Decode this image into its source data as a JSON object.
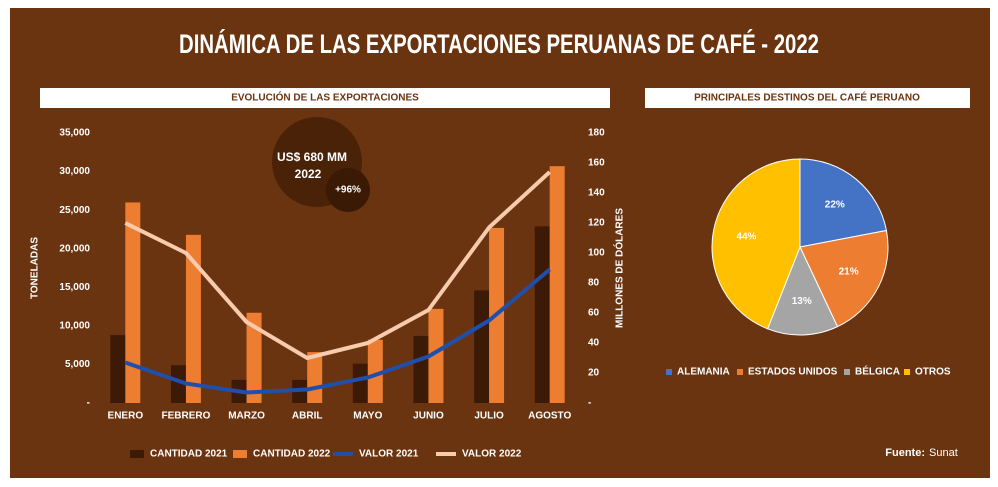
{
  "title": "DINÁMICA DE LAS EXPORTACIONES PERUANAS DE CAFÉ - 2022",
  "chart_data": [
    {
      "type": "combo",
      "title": "EVOLUCIÓN DE LAS EXPORTACIONES",
      "categories": [
        "ENERO",
        "FEBRERO",
        "MARZO",
        "ABRIL",
        "MAYO",
        "JUNIO",
        "JULIO",
        "AGOSTO"
      ],
      "ylabel": "TONELADAS",
      "y2label": "MILLONES DE DÓLARES",
      "ylim": [
        0,
        35000
      ],
      "yticks": [
        {
          "value": 0,
          "label": "-"
        },
        {
          "value": 5000,
          "label": "5,000"
        },
        {
          "value": 10000,
          "label": "10,000"
        },
        {
          "value": 15000,
          "label": "15,000"
        },
        {
          "value": 20000,
          "label": "20,000"
        },
        {
          "value": 25000,
          "label": "25,000"
        },
        {
          "value": 30000,
          "label": "30,000"
        },
        {
          "value": 35000,
          "label": "35,000"
        }
      ],
      "y2lim": [
        0,
        180
      ],
      "y2ticks": [
        {
          "value": 0,
          "label": "-"
        },
        20,
        40,
        60,
        80,
        100,
        120,
        140,
        160,
        180
      ],
      "series": [
        {
          "name": "CANTIDAD 2021",
          "type": "bar",
          "color": "#3d1a05",
          "values": [
            8800,
            4900,
            3000,
            3000,
            5100,
            8700,
            14600,
            22900
          ]
        },
        {
          "name": "CANTIDAD 2022",
          "type": "bar",
          "color": "#ed7d31",
          "values": [
            26000,
            21800,
            11700,
            6600,
            8200,
            12200,
            22700,
            30700
          ]
        },
        {
          "name": "VALOR 2021",
          "type": "line",
          "axis": "y2",
          "color": "#1f4fad",
          "values": [
            27,
            13,
            7,
            9,
            17,
            31,
            55,
            89
          ]
        },
        {
          "name": "VALOR 2022",
          "type": "line",
          "axis": "y2",
          "color": "#f8cbad",
          "values": [
            120,
            100,
            54,
            30,
            40,
            62,
            117,
            154
          ]
        }
      ],
      "annotations": [
        "US$ 680 MM",
        "2022",
        "+96%"
      ]
    },
    {
      "type": "pie",
      "title": "PRINCIPALES DESTINOS DEL CAFÉ PERUANO",
      "categories": [
        "ALEMANIA",
        "ESTADOS UNIDOS",
        "BÉLGICA",
        "OTROS"
      ],
      "values": [
        22,
        21,
        13,
        44
      ],
      "value_labels": [
        "22%",
        "21%",
        "13%",
        "44%"
      ],
      "colors": [
        "#4472c4",
        "#ed7d31",
        "#a5a5a5",
        "#ffc000"
      ]
    }
  ],
  "source": {
    "label": "Fuente:",
    "text": "Sunat"
  }
}
